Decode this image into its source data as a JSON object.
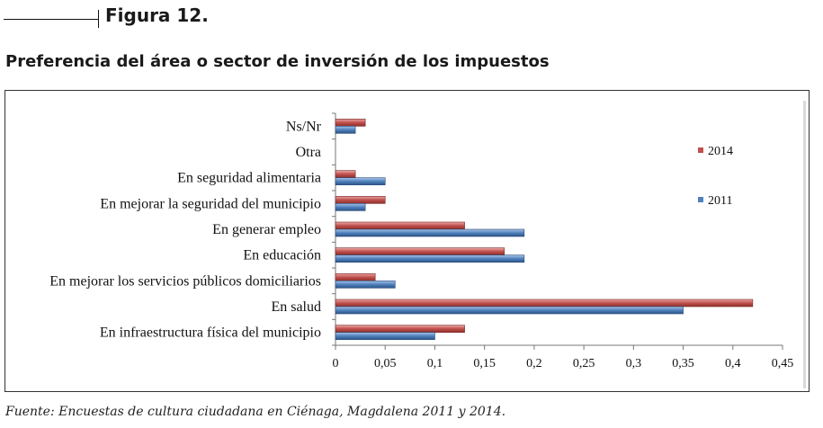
{
  "figure_label": "Figura 12.",
  "source": "Fuente: Encuestas de cultura ciudadana en Ciénaga, Magdalena 2011 y 2014.",
  "chart_data": {
    "type": "bar",
    "orientation": "horizontal",
    "title": "Preferencia del área o sector de inversión de los impuestos",
    "categories": [
      "Ns/Nr",
      "Otra",
      "En seguridad alimentaria",
      "En mejorar la seguridad del municipio",
      "En generar empleo",
      "En educación",
      "En mejorar los servicios públicos domiciliarios",
      "En salud",
      "En infraestructura física del municipio"
    ],
    "series": [
      {
        "name": "2014",
        "color": "#c0504d",
        "values": [
          0.03,
          0,
          0.02,
          0.05,
          0.13,
          0.17,
          0.04,
          0.42,
          0.13
        ]
      },
      {
        "name": "2011",
        "color": "#4f81bd",
        "values": [
          0.02,
          0,
          0.05,
          0.03,
          0.19,
          0.19,
          0.06,
          0.35,
          0.1
        ]
      }
    ],
    "xlim": [
      0,
      0.45
    ],
    "xticks": [
      0,
      0.05,
      0.1,
      0.15,
      0.2,
      0.25,
      0.3,
      0.35,
      0.4,
      0.45
    ],
    "xtick_labels": [
      "0",
      "0,05",
      "0,1",
      "0,15",
      "0,2",
      "0,25",
      "0,3",
      "0,35",
      "0,4",
      "0,45"
    ],
    "grid": false,
    "legend_position": "right"
  }
}
